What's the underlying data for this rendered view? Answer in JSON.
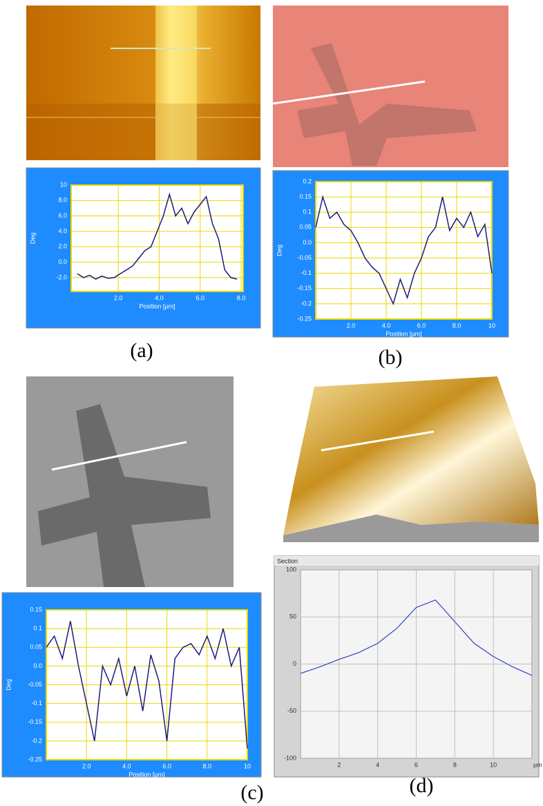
{
  "chart_data": [
    {
      "type": "line",
      "panel_label": "(a)",
      "x_label": "Position [µm]",
      "y_label": "Deg",
      "x": [
        0,
        0.3,
        0.6,
        0.9,
        1.2,
        1.5,
        1.8,
        2.1,
        2.4,
        2.7,
        3.0,
        3.3,
        3.6,
        3.9,
        4.2,
        4.5,
        4.8,
        5.1,
        5.4,
        5.7,
        6.0,
        6.3,
        6.6,
        6.9,
        7.2,
        7.5,
        7.8
      ],
      "series": [
        {
          "color": "#1a1a80",
          "values": [
            -1.5,
            -2,
            -1.7,
            -2.2,
            -1.8,
            -2.1,
            -2,
            -1.5,
            -1,
            -0.5,
            0.5,
            1.5,
            2,
            4,
            6,
            8.8,
            6,
            7,
            5,
            6.5,
            7.5,
            8.5,
            5,
            3,
            -1,
            -2,
            -2.2
          ]
        }
      ],
      "xlim": [
        -0.3,
        8.1
      ],
      "ylim": [
        -3.8,
        10
      ],
      "xticks": [
        {
          "value": 2,
          "label": "2.0"
        },
        {
          "value": 4,
          "label": "4.0"
        },
        {
          "value": 6,
          "label": "6.0"
        },
        {
          "value": 8,
          "label": "8.0"
        }
      ],
      "yticks": [
        {
          "value": -2,
          "label": "-2.0"
        },
        {
          "value": 0,
          "label": "0.0"
        },
        {
          "value": 2,
          "label": "2.0"
        },
        {
          "value": 4,
          "label": "4.0"
        },
        {
          "value": 6,
          "label": "6.0"
        },
        {
          "value": 8,
          "label": "8.0"
        },
        10
      ],
      "grid": true
    },
    {
      "type": "line",
      "panel_label": "(b)",
      "x_label": "Position [µm]",
      "y_label": "Deg",
      "x": [
        0,
        0.4,
        0.8,
        1.2,
        1.6,
        2.0,
        2.4,
        2.8,
        3.2,
        3.6,
        4.0,
        4.4,
        4.8,
        5.2,
        5.6,
        6.0,
        6.4,
        6.8,
        7.2,
        7.6,
        8.0,
        8.4,
        8.8,
        9.2,
        9.6,
        10
      ],
      "series": [
        {
          "color": "#1a1a80",
          "values": [
            0.05,
            0.15,
            0.08,
            0.1,
            0.06,
            0.04,
            0.0,
            -0.05,
            -0.08,
            -0.1,
            -0.15,
            -0.2,
            -0.12,
            -0.18,
            -0.1,
            -0.05,
            0.02,
            0.05,
            0.15,
            0.04,
            0.08,
            0.05,
            0.1,
            0.02,
            0.06,
            -0.1
          ]
        }
      ],
      "xlim": [
        0,
        10
      ],
      "ylim": [
        -0.25,
        0.2
      ],
      "xticks": [
        {
          "value": 2,
          "label": "2.0"
        },
        {
          "value": 4,
          "label": "4.0"
        },
        {
          "value": 6,
          "label": "6.0"
        },
        {
          "value": 8,
          "label": "8.0"
        },
        10
      ],
      "yticks": [
        -0.25,
        -0.2,
        -0.15,
        -0.1,
        -0.05,
        {
          "value": 0,
          "label": "0.0"
        },
        0.05,
        0.1,
        0.15,
        0.2
      ],
      "grid": true
    },
    {
      "type": "line",
      "panel_label": "(c)",
      "x_label": "Position [µm]",
      "y_label": "Deg",
      "x": [
        0,
        0.4,
        0.8,
        1.2,
        1.6,
        2.0,
        2.4,
        2.8,
        3.2,
        3.6,
        4.0,
        4.4,
        4.8,
        5.2,
        5.6,
        6.0,
        6.4,
        6.8,
        7.2,
        7.6,
        8.0,
        8.4,
        8.8,
        9.2,
        9.6,
        10
      ],
      "series": [
        {
          "color": "#1a1a80",
          "values": [
            0.05,
            0.08,
            0.02,
            0.12,
            0.0,
            -0.1,
            -0.2,
            0.0,
            -0.05,
            0.02,
            -0.08,
            0.0,
            -0.12,
            0.03,
            -0.04,
            -0.2,
            0.02,
            0.05,
            0.06,
            0.03,
            0.08,
            0.02,
            0.1,
            0.0,
            0.05,
            -0.22
          ]
        }
      ],
      "xlim": [
        0,
        10
      ],
      "ylim": [
        -0.25,
        0.15
      ],
      "xticks": [
        {
          "value": 2,
          "label": "2.0"
        },
        {
          "value": 4,
          "label": "4.0"
        },
        {
          "value": 6,
          "label": "6.0"
        },
        {
          "value": 8,
          "label": "8.0"
        },
        10
      ],
      "yticks": [
        -0.25,
        -0.2,
        -0.15,
        -0.1,
        -0.05,
        {
          "value": 0,
          "label": "0.0"
        },
        0.05,
        0.1,
        0.15
      ],
      "grid": true
    },
    {
      "type": "line",
      "panel_label": "(d)",
      "title": "Section",
      "x_unit": "µm",
      "x": [
        0,
        1,
        2,
        3,
        4,
        5,
        6,
        7,
        8,
        9,
        10,
        11,
        12
      ],
      "series": [
        {
          "color": "#3040c0",
          "values": [
            -10,
            -3,
            5,
            12,
            22,
            38,
            60,
            68,
            45,
            22,
            8,
            -3,
            -12
          ]
        }
      ],
      "xlim": [
        0,
        12
      ],
      "ylim": [
        -100,
        100
      ],
      "xticks": [
        2,
        4,
        6,
        8,
        10
      ],
      "yticks": [
        -100,
        -50,
        0,
        50,
        100
      ],
      "grid": true
    }
  ]
}
